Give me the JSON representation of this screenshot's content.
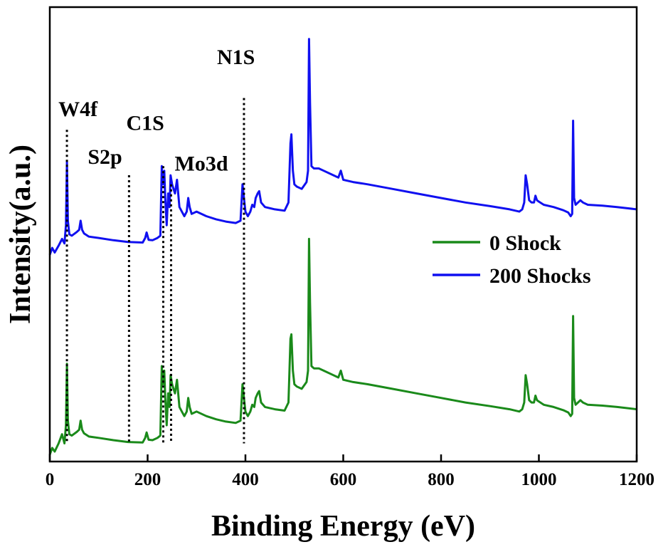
{
  "chart_data": {
    "type": "line",
    "title": "",
    "xlabel": "Binding Energy (eV)",
    "ylabel": "Intensity(a.u.)",
    "xlim": [
      0,
      1200
    ],
    "ylim": [
      0,
      1
    ],
    "xticks": [
      0,
      200,
      400,
      600,
      800,
      1000,
      1200
    ],
    "xtick_labels": [
      "0",
      "200",
      "400",
      "600",
      "800",
      "1000",
      "1200"
    ],
    "grid": false,
    "legend_position": "right",
    "series": [
      {
        "name": "0 Shock",
        "color": "#1a8a1a",
        "x": [
          0,
          5,
          10,
          18,
          25,
          30,
          33,
          35,
          37,
          40,
          45,
          55,
          60,
          63,
          66,
          70,
          80,
          100,
          130,
          160,
          190,
          195,
          198,
          202,
          210,
          220,
          226,
          229,
          231,
          234,
          236,
          239,
          242,
          245,
          247,
          250,
          253,
          256,
          260,
          265,
          270,
          275,
          280,
          283,
          286,
          290,
          300,
          320,
          340,
          360,
          380,
          390,
          394,
          397,
          400,
          405,
          410,
          414,
          418,
          421,
          425,
          428,
          432,
          440,
          460,
          480,
          488,
          492,
          494,
          497,
          500,
          505,
          515,
          525,
          528,
          530,
          532,
          535,
          540,
          550,
          560,
          580,
          590,
          595,
          600,
          620,
          650,
          700,
          750,
          800,
          850,
          900,
          940,
          960,
          966,
          970,
          973,
          976,
          980,
          985,
          990,
          993,
          996,
          1000,
          1010,
          1030,
          1050,
          1060,
          1065,
          1068,
          1070,
          1072,
          1075,
          1080,
          1085,
          1090,
          1100,
          1130,
          1160,
          1200
        ],
        "values": [
          0.015,
          0.03,
          0.022,
          0.04,
          0.06,
          0.04,
          0.08,
          0.215,
          0.09,
          0.06,
          0.057,
          0.065,
          0.07,
          0.09,
          0.07,
          0.062,
          0.055,
          0.052,
          0.047,
          0.043,
          0.042,
          0.052,
          0.064,
          0.048,
          0.047,
          0.052,
          0.057,
          0.21,
          0.17,
          0.2,
          0.14,
          0.08,
          0.15,
          0.12,
          0.19,
          0.17,
          0.16,
          0.15,
          0.18,
          0.12,
          0.11,
          0.1,
          0.11,
          0.14,
          0.12,
          0.105,
          0.11,
          0.1,
          0.093,
          0.088,
          0.085,
          0.09,
          0.17,
          0.14,
          0.11,
          0.1,
          0.11,
          0.125,
          0.12,
          0.14,
          0.15,
          0.155,
          0.13,
          0.12,
          0.115,
          0.112,
          0.13,
          0.27,
          0.28,
          0.2,
          0.17,
          0.165,
          0.16,
          0.175,
          0.2,
          0.49,
          0.35,
          0.21,
          0.205,
          0.205,
          0.2,
          0.19,
          0.185,
          0.2,
          0.18,
          0.175,
          0.17,
          0.16,
          0.15,
          0.14,
          0.13,
          0.122,
          0.115,
          0.11,
          0.115,
          0.13,
          0.19,
          0.17,
          0.135,
          0.13,
          0.13,
          0.145,
          0.135,
          0.132,
          0.125,
          0.12,
          0.113,
          0.108,
          0.1,
          0.105,
          0.32,
          0.14,
          0.125,
          0.13,
          0.135,
          0.13,
          0.125,
          0.123,
          0.12,
          0.115
        ]
      },
      {
        "name": "200 Shocks",
        "color": "#1010f0",
        "x": [
          0,
          5,
          10,
          18,
          25,
          30,
          33,
          35,
          37,
          40,
          45,
          55,
          60,
          63,
          66,
          70,
          80,
          100,
          130,
          160,
          190,
          195,
          198,
          202,
          210,
          220,
          226,
          229,
          231,
          234,
          236,
          239,
          242,
          245,
          247,
          250,
          253,
          256,
          260,
          265,
          270,
          275,
          280,
          283,
          286,
          290,
          300,
          320,
          340,
          360,
          380,
          390,
          394,
          397,
          400,
          405,
          410,
          414,
          418,
          421,
          425,
          428,
          432,
          440,
          460,
          480,
          488,
          492,
          494,
          497,
          500,
          505,
          515,
          525,
          528,
          530,
          532,
          535,
          540,
          550,
          560,
          580,
          590,
          595,
          600,
          620,
          650,
          700,
          750,
          800,
          850,
          900,
          940,
          960,
          966,
          970,
          973,
          976,
          980,
          985,
          990,
          993,
          996,
          1000,
          1010,
          1030,
          1050,
          1060,
          1065,
          1068,
          1070,
          1072,
          1075,
          1080,
          1085,
          1090,
          1100,
          1130,
          1160,
          1200
        ],
        "values": [
          0.455,
          0.47,
          0.46,
          0.475,
          0.49,
          0.48,
          0.52,
          0.66,
          0.53,
          0.5,
          0.497,
          0.505,
          0.51,
          0.53,
          0.51,
          0.502,
          0.495,
          0.492,
          0.487,
          0.483,
          0.482,
          0.492,
          0.504,
          0.488,
          0.487,
          0.492,
          0.497,
          0.65,
          0.61,
          0.64,
          0.58,
          0.52,
          0.59,
          0.56,
          0.63,
          0.61,
          0.6,
          0.59,
          0.62,
          0.56,
          0.55,
          0.54,
          0.55,
          0.58,
          0.56,
          0.545,
          0.55,
          0.54,
          0.533,
          0.528,
          0.525,
          0.53,
          0.61,
          0.58,
          0.55,
          0.54,
          0.55,
          0.565,
          0.56,
          0.58,
          0.59,
          0.595,
          0.57,
          0.56,
          0.555,
          0.552,
          0.57,
          0.7,
          0.72,
          0.64,
          0.61,
          0.605,
          0.6,
          0.615,
          0.64,
          0.93,
          0.79,
          0.65,
          0.645,
          0.645,
          0.64,
          0.63,
          0.625,
          0.64,
          0.62,
          0.615,
          0.61,
          0.6,
          0.59,
          0.58,
          0.57,
          0.562,
          0.555,
          0.55,
          0.555,
          0.57,
          0.63,
          0.61,
          0.575,
          0.57,
          0.57,
          0.585,
          0.575,
          0.572,
          0.565,
          0.56,
          0.553,
          0.548,
          0.54,
          0.545,
          0.75,
          0.58,
          0.565,
          0.57,
          0.575,
          0.57,
          0.565,
          0.563,
          0.56,
          0.555
        ]
      }
    ],
    "annotations": [
      {
        "label": "W4f",
        "x": 35,
        "y_top": 0.73
      },
      {
        "label": "S2p",
        "x": 162,
        "y_top": 0.63
      },
      {
        "label": "C1S",
        "x": 232,
        "y_top": 0.65
      },
      {
        "label": "Mo3d",
        "x": 248,
        "y_top": 0.61
      },
      {
        "label": "N1S",
        "x": 397,
        "y_top": 0.8
      }
    ]
  }
}
